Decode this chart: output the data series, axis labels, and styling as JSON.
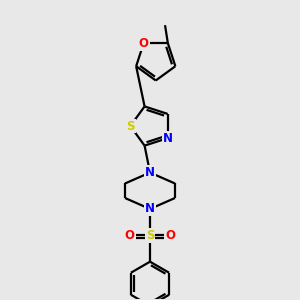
{
  "bg_color": "#e8e8e8",
  "bond_color": "#000000",
  "atom_colors": {
    "O": "#ff0000",
    "N": "#0000ff",
    "S_yellow": "#cccc00",
    "C": "#000000"
  },
  "line_width": 1.6,
  "dbo": 0.055
}
